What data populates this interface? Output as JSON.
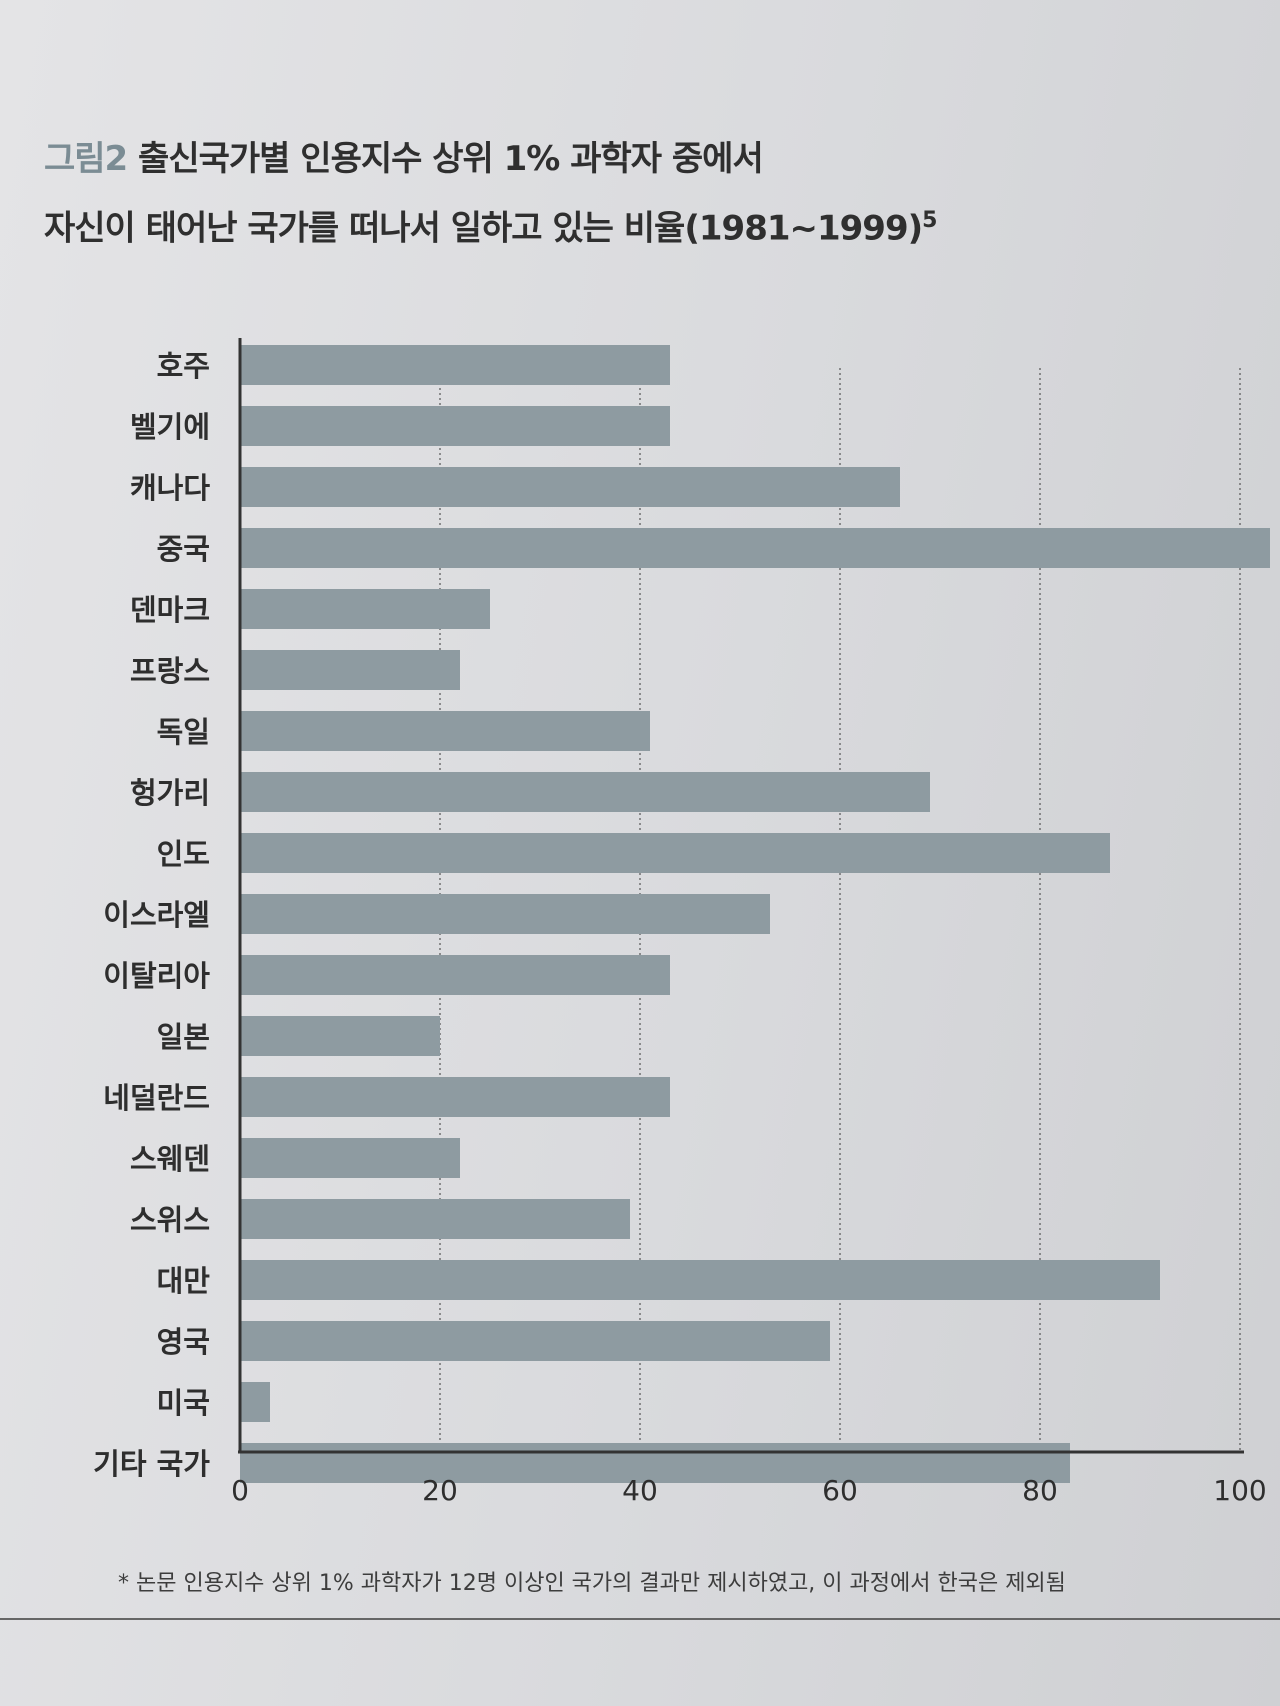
{
  "title": {
    "label": "그림2",
    "line1": " 출신국가별 인용지수 상위 1% 과학자 중에서",
    "line2": "자신이 태어난 국가를 떠나서 일하고 있는 비율(1981~1999)",
    "superscript": "5"
  },
  "footnote": "* 논문 인용지수 상위 1% 과학자가 12명 이상인 국가의 결과만 제시하였고, 이 과정에서 한국은 제외됨",
  "chart_data": {
    "type": "bar",
    "orientation": "horizontal",
    "categories": [
      "호주",
      "벨기에",
      "캐나다",
      "중국",
      "덴마크",
      "프랑스",
      "독일",
      "헝가리",
      "인도",
      "이스라엘",
      "이탈리아",
      "일본",
      "네덜란드",
      "스웨덴",
      "스위스",
      "대만",
      "영국",
      "미국",
      "기타 국가"
    ],
    "values": [
      43,
      43,
      66,
      103,
      25,
      22,
      41,
      69,
      87,
      53,
      43,
      20,
      43,
      22,
      39,
      92,
      59,
      3,
      83
    ],
    "xlim": [
      0,
      100
    ],
    "xticks": [
      "0",
      "20",
      "40",
      "60",
      "80",
      "100"
    ],
    "grid": "vertical dotted",
    "bar_color": "#8e9ba1"
  }
}
